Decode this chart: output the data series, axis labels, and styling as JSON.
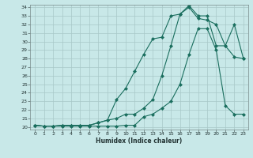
{
  "xlabel": "Humidex (Indice chaleur)",
  "background_color": "#c8e8e8",
  "grid_color": "#a8c8c8",
  "line_color": "#1a6e5e",
  "xlim": [
    -0.5,
    23.5
  ],
  "ylim": [
    19.7,
    34.3
  ],
  "xticks": [
    0,
    1,
    2,
    3,
    4,
    5,
    6,
    7,
    8,
    9,
    10,
    11,
    12,
    13,
    14,
    15,
    16,
    17,
    18,
    19,
    20,
    21,
    22,
    23
  ],
  "yticks": [
    20,
    21,
    22,
    23,
    24,
    25,
    26,
    27,
    28,
    29,
    30,
    31,
    32,
    33,
    34
  ],
  "line1_x": [
    0,
    1,
    2,
    3,
    4,
    5,
    6,
    7,
    8,
    9,
    10,
    11,
    12,
    13,
    14,
    15,
    16,
    17,
    18,
    19,
    20,
    21,
    22,
    23
  ],
  "line1_y": [
    20.2,
    20.1,
    20.1,
    20.1,
    20.1,
    20.1,
    20.1,
    20.1,
    20.1,
    20.1,
    20.2,
    20.2,
    21.2,
    21.5,
    22.2,
    23.0,
    25.0,
    28.5,
    31.5,
    31.5,
    29.0,
    22.5,
    21.5,
    21.5
  ],
  "line2_x": [
    0,
    1,
    2,
    3,
    4,
    5,
    6,
    7,
    8,
    9,
    10,
    11,
    12,
    13,
    14,
    15,
    16,
    17,
    18,
    19,
    20,
    21,
    22,
    23
  ],
  "line2_y": [
    20.2,
    20.1,
    20.1,
    20.2,
    20.2,
    20.2,
    20.2,
    20.5,
    20.8,
    21.0,
    21.5,
    21.5,
    22.2,
    23.2,
    26.0,
    29.5,
    33.2,
    34.2,
    33.0,
    33.0,
    29.5,
    29.5,
    32.0,
    28.0
  ],
  "line3_x": [
    0,
    1,
    2,
    3,
    4,
    5,
    6,
    7,
    8,
    9,
    10,
    11,
    12,
    13,
    14,
    15,
    16,
    17,
    18,
    19,
    20,
    21,
    22,
    23
  ],
  "line3_y": [
    20.2,
    20.1,
    20.1,
    20.2,
    20.2,
    20.2,
    20.2,
    20.5,
    20.8,
    23.2,
    24.5,
    26.5,
    28.5,
    30.3,
    30.5,
    33.0,
    33.2,
    34.0,
    32.7,
    32.5,
    32.0,
    29.5,
    28.2,
    28.0
  ]
}
